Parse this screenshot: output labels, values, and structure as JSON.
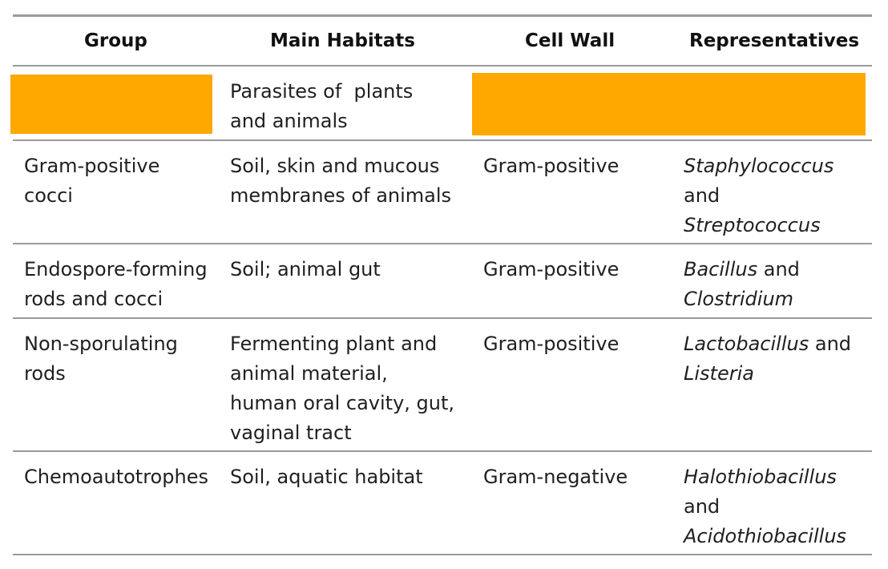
{
  "table": {
    "headers": {
      "group": "Group",
      "habitats": "Main Habitats",
      "cell_wall": "Cell Wall",
      "representatives": "Representatives"
    },
    "redaction_color": "#FFA800",
    "rows": [
      {
        "group": "",
        "habitats": [
          "Parasites of  plants",
          "and animals"
        ],
        "cell_wall": "",
        "representatives": ""
      },
      {
        "group": [
          "Gram-positive",
          "cocci"
        ],
        "habitats": [
          "Soil, skin and mucous",
          "membranes of animals"
        ],
        "cell_wall": "Gram-positive",
        "representatives": {
          "taxon1": "Staphylococcus",
          "conj": "and",
          "taxon2": "Streptococcus"
        }
      },
      {
        "group": [
          "Endospore-forming",
          "rods and cocci"
        ],
        "habitats": [
          "Soil; animal gut"
        ],
        "cell_wall": "Gram-positive",
        "representatives": {
          "taxon1": "Bacillus",
          "conj": "and",
          "taxon2": "Clostridium"
        }
      },
      {
        "group": [
          "Non-sporulating",
          "rods"
        ],
        "habitats": [
          "Fermenting plant and",
          "animal material,",
          "human oral cavity, gut,",
          "vaginal tract"
        ],
        "cell_wall": "Gram-positive",
        "representatives": {
          "taxon1": "Lactobacillus",
          "conj": "and",
          "taxon2": "Listeria"
        }
      },
      {
        "group": [
          "Chemoautotrophes"
        ],
        "habitats": [
          "Soil, aquatic habitat"
        ],
        "cell_wall": "Gram-negative",
        "representatives": {
          "taxon1": "Halothiobacillus",
          "conj": "and",
          "taxon2": "Acidothiobacillus"
        }
      }
    ]
  }
}
